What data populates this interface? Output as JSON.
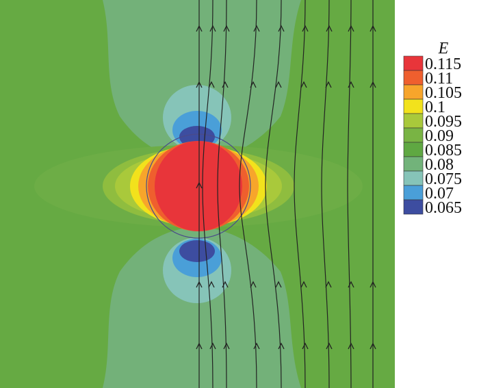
{
  "legend": {
    "title": "E",
    "levels": [
      {
        "value": "0.115",
        "color": "#e8353a"
      },
      {
        "value": "0.11",
        "color": "#ef5f2e"
      },
      {
        "value": "0.105",
        "color": "#f7a52b"
      },
      {
        "value": "0.1",
        "color": "#f2e21c"
      },
      {
        "value": "0.095",
        "color": "#a9c93b"
      },
      {
        "value": "0.09",
        "color": "#79b444"
      },
      {
        "value": "0.085",
        "color": "#5fa842"
      },
      {
        "value": "0.08",
        "color": "#72b37a"
      },
      {
        "value": "0.075",
        "color": "#86c4b8"
      },
      {
        "value": "0.07",
        "color": "#4a9fd8"
      },
      {
        "value": "0.065",
        "color": "#3d4da0"
      }
    ]
  },
  "colors": {
    "background_field": "#66aa43",
    "lobe_field": "#73b179",
    "streamline": "#222222"
  }
}
